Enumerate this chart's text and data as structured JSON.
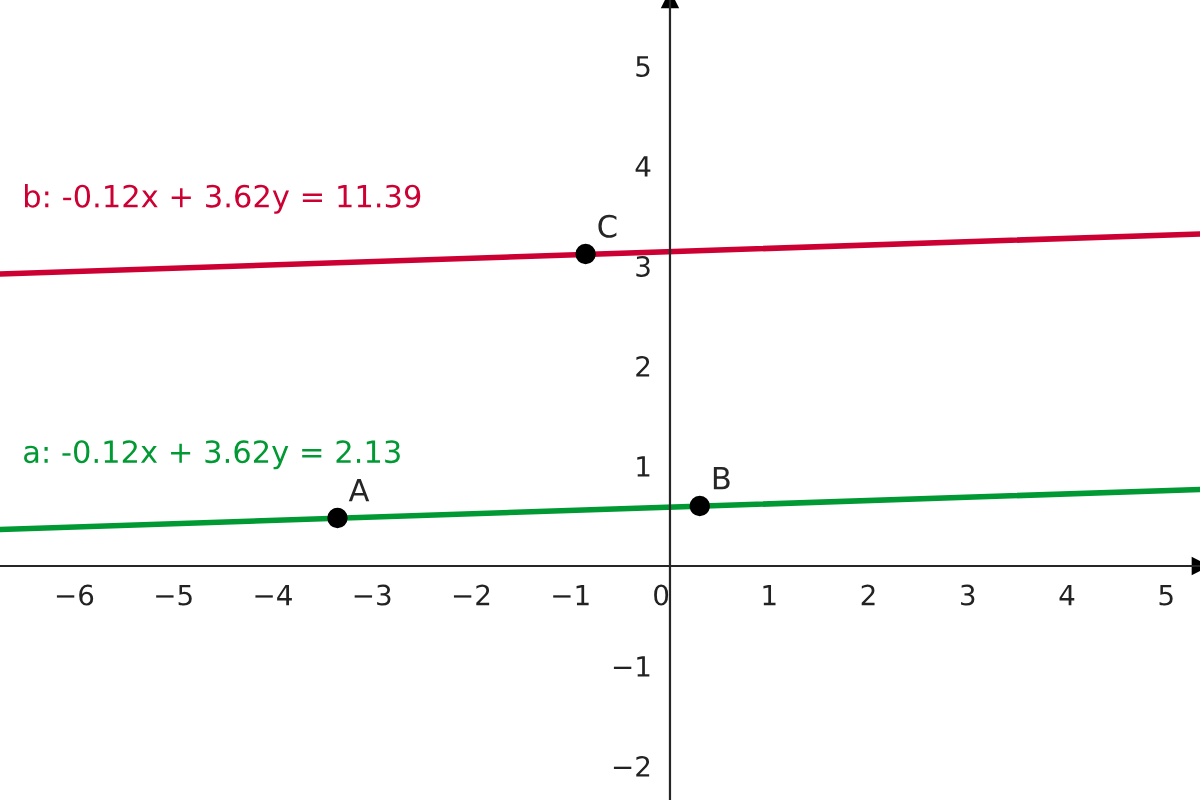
{
  "chart_data": {
    "type": "line",
    "xlim": [
      -6.75,
      5.34
    ],
    "ylim": [
      -2.34,
      5.66
    ],
    "xticks": [
      {
        "value": -6,
        "label": "−6"
      },
      {
        "value": -5,
        "label": "−5"
      },
      {
        "value": -4,
        "label": "−4"
      },
      {
        "value": -3,
        "label": "−3"
      },
      {
        "value": -2,
        "label": "−2"
      },
      {
        "value": -1,
        "label": "−1"
      },
      0,
      1,
      2,
      3,
      4,
      5
    ],
    "yticks": [
      {
        "value": -2,
        "label": "−2"
      },
      {
        "value": -1,
        "label": "−1"
      },
      1,
      2,
      3,
      4,
      5
    ],
    "grid": false,
    "legend": false,
    "series": [
      {
        "name": "b: -0.12x + 3.62y = 11.39",
        "color": "#cc0033",
        "x": [
          -6.75,
          5.34
        ],
        "values": [
          2.92,
          3.32
        ],
        "marker": "none"
      },
      {
        "name": "a: -0.12x + 3.62y = 2.13",
        "color": "#009933",
        "x": [
          -6.75,
          5.34
        ],
        "values": [
          0.365,
          0.765
        ],
        "marker": "none"
      },
      {
        "type": "scatter",
        "color": "#000000",
        "x": [
          -3.35,
          0.3,
          -0.85
        ],
        "values": [
          0.48,
          0.6,
          3.12
        ],
        "marker": "circle"
      }
    ],
    "annotations": [
      {
        "text": "A",
        "x": -3.35,
        "y": 0.48
      },
      {
        "text": "B",
        "x": 0.3,
        "y": 0.6
      },
      {
        "text": "C",
        "x": -0.85,
        "y": 3.12
      }
    ]
  }
}
